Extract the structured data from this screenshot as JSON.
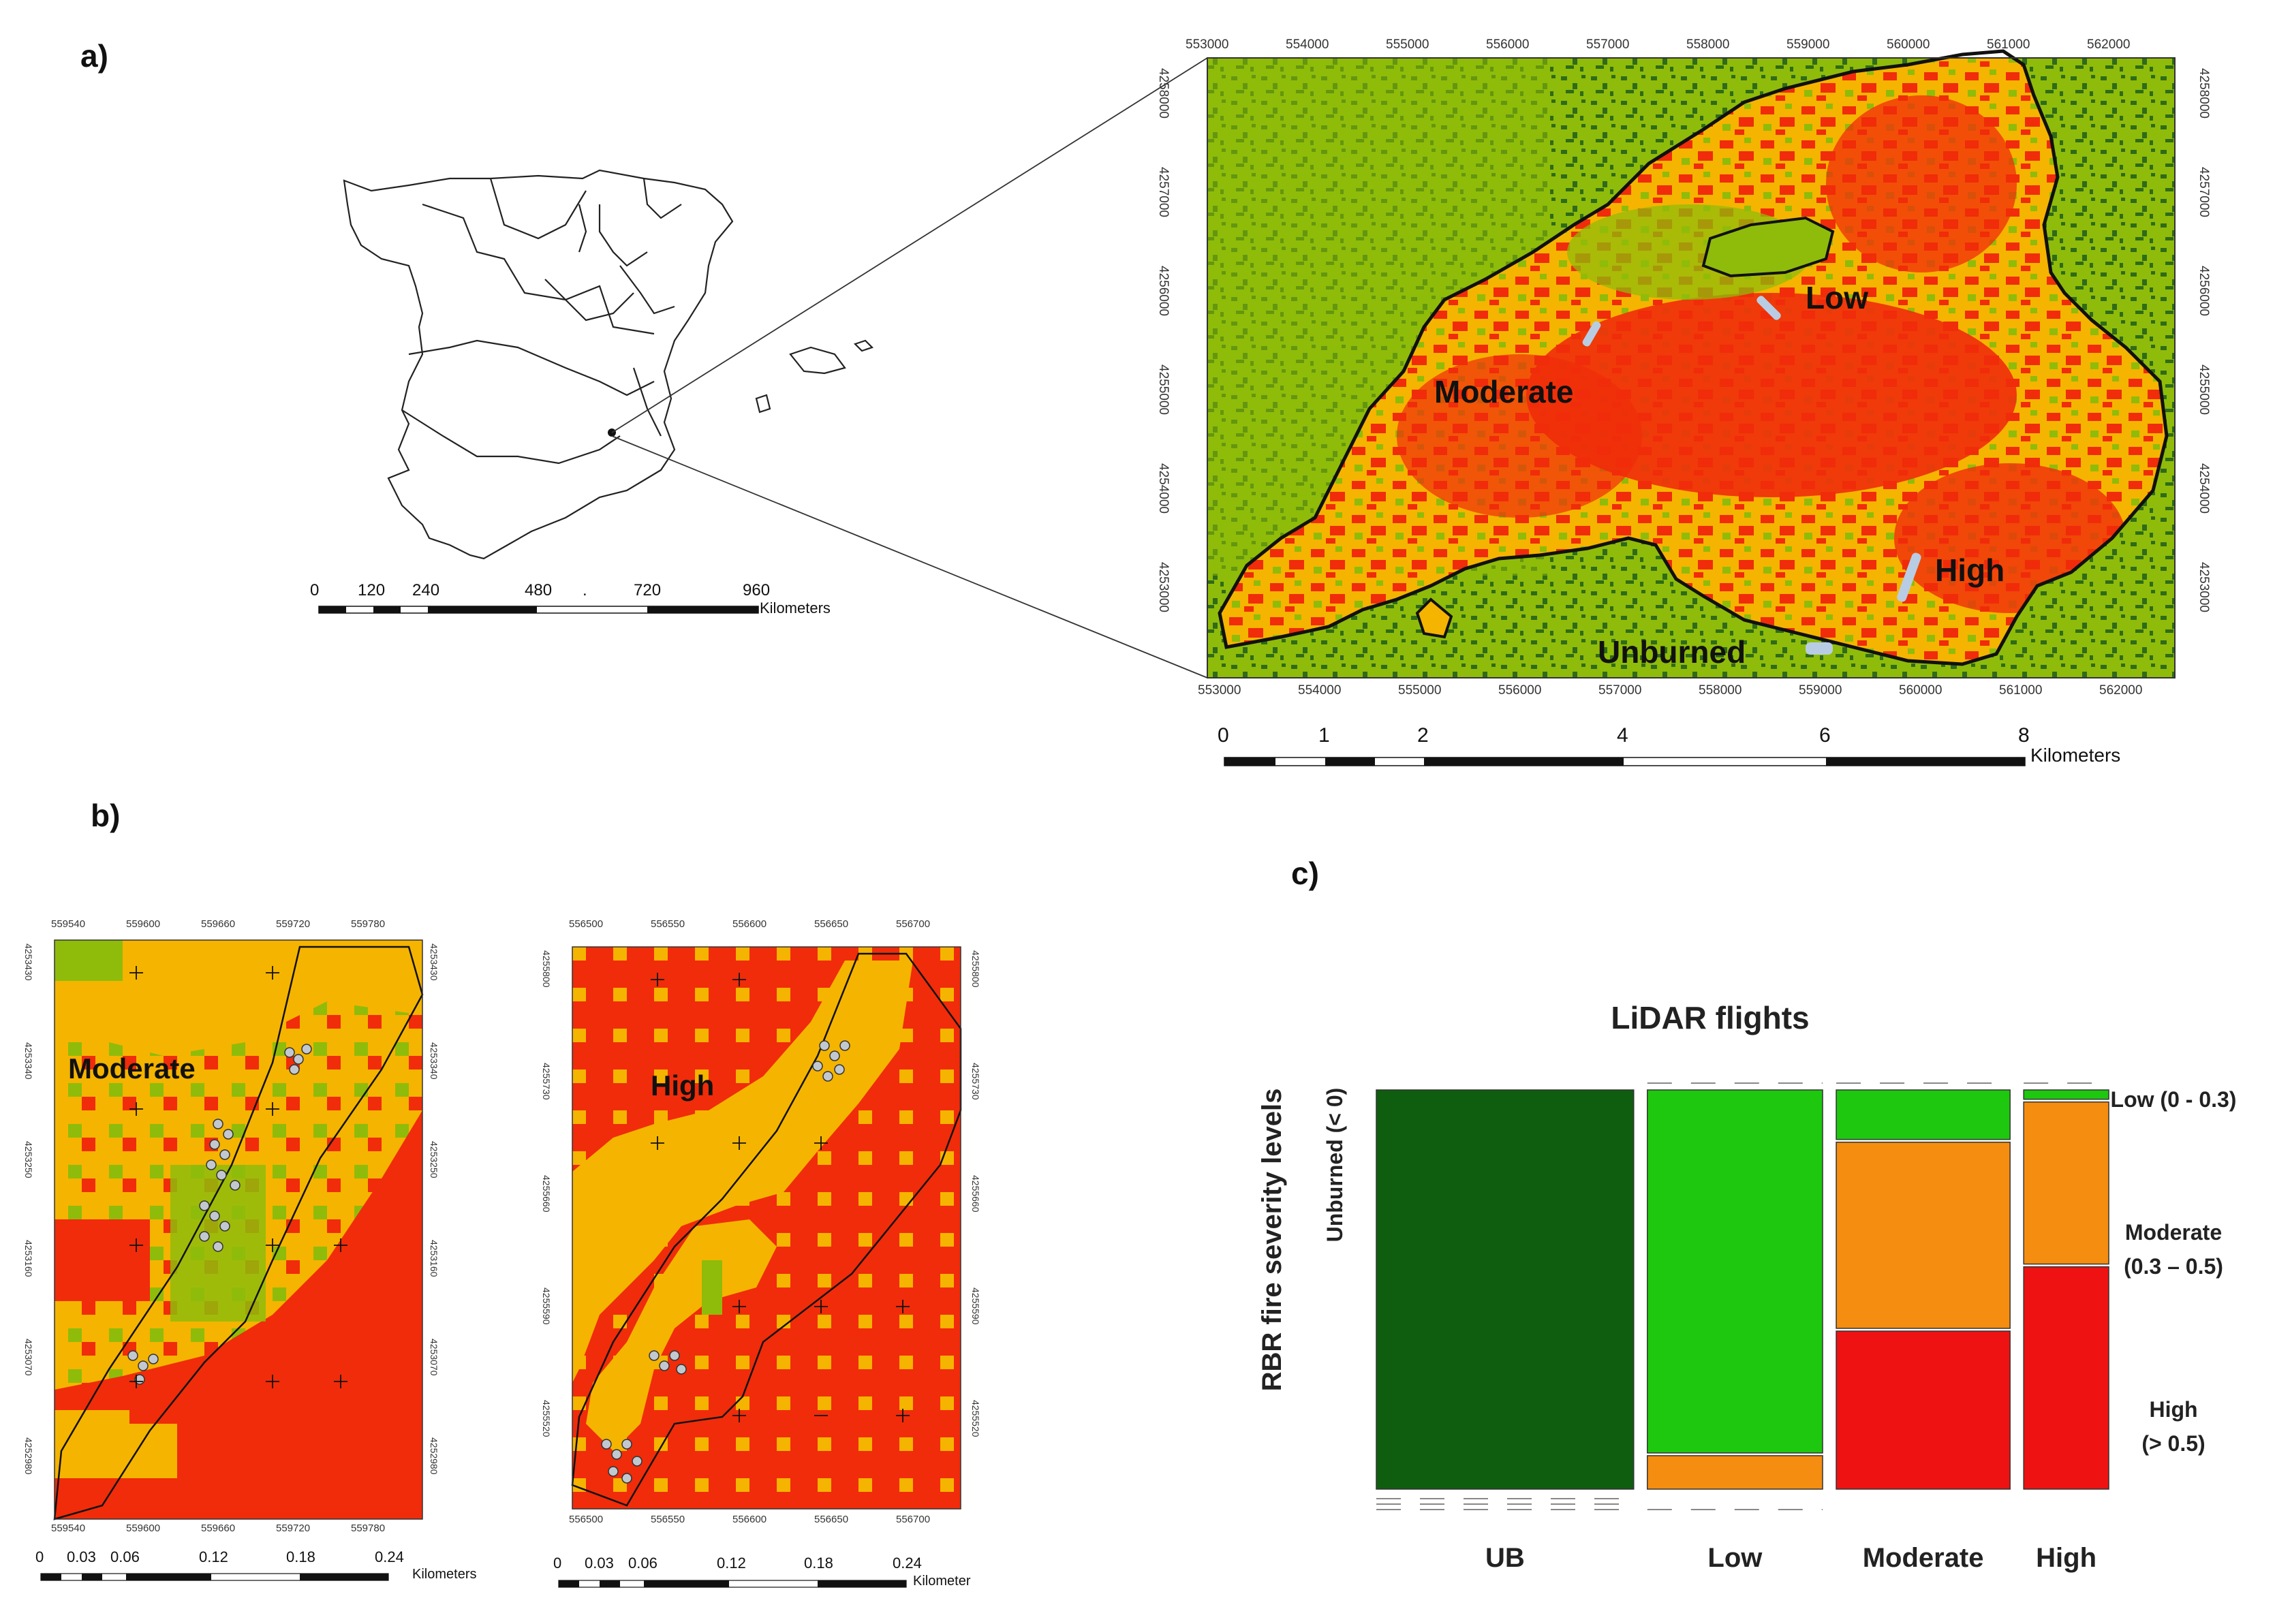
{
  "panels": {
    "a": "a)",
    "b": "b)",
    "c": "c)"
  },
  "colors": {
    "unburned": "#8fbc0a",
    "forest": "#2f6b18",
    "low": "#e5b800",
    "moderate_map": "#f5b400",
    "high_map": "#f02c0a",
    "sample": "#b8cde3",
    "mosaic_ub": "#0f5d0f",
    "mosaic_low": "#1ec80e",
    "mosaic_moderate": "#f58d10",
    "mosaic_high": "#ee1212"
  },
  "spain_map": {
    "scale_ticks": [
      "0",
      "120",
      "240",
      "480",
      ".",
      "720",
      "960"
    ],
    "scale_unit": "Kilometers"
  },
  "fire_map": {
    "x_ticks": [
      "553000",
      "554000",
      "555000",
      "556000",
      "557000",
      "558000",
      "559000",
      "560000",
      "561000",
      "562000"
    ],
    "y_ticks": [
      "4258000",
      "4257000",
      "4256000",
      "4255000",
      "4254000",
      "4253000"
    ],
    "labels": {
      "low": "Low",
      "moderate": "Moderate",
      "high": "High",
      "unburned": "Unburned"
    },
    "scale_ticks": [
      "0",
      "1",
      "2",
      "4",
      "6",
      "8"
    ],
    "scale_unit": "Kilometers"
  },
  "detail_moderate": {
    "x_ticks": [
      "559540",
      "559600",
      "559660",
      "559720",
      "559780"
    ],
    "y_ticks": [
      "4253430",
      "4253340",
      "4253250",
      "4253160",
      "4253070",
      "4252980"
    ],
    "label": "Moderate",
    "scale_ticks": [
      "0",
      "0.03",
      "0.06",
      "0.12",
      "0.18",
      "0.24"
    ],
    "scale_unit": "Kilometers"
  },
  "detail_high": {
    "x_ticks": [
      "556500",
      "556550",
      "556600",
      "556650",
      "556700"
    ],
    "y_ticks": [
      "4255800",
      "4255730",
      "4255660",
      "4255590",
      "4255520"
    ],
    "label": "High",
    "scale_ticks": [
      "0",
      "0.03",
      "0.06",
      "0.12",
      "0.18",
      "0.24"
    ],
    "scale_unit": "Kilometer"
  },
  "chart_data": {
    "type": "mosaic",
    "title": "LiDAR flights",
    "ylabel": "RBR fire severity levels",
    "categories": [
      "UB",
      "Low",
      "Moderate",
      "High"
    ],
    "column_widths": [
      0.348,
      0.237,
      0.235,
      0.115
    ],
    "series": [
      {
        "name": "Unburned (< 0)",
        "color": "#0f5d0f",
        "values": [
          1.0,
          0.0,
          0.0,
          0.0
        ]
      },
      {
        "name": "Low (0 - 0.3)",
        "color": "#1ec80e",
        "values": [
          0.0,
          0.91,
          0.13,
          0.03
        ]
      },
      {
        "name": "Moderate\n(0.3 – 0.5)",
        "color": "#f58d10",
        "values": [
          0.0,
          0.09,
          0.47,
          0.41
        ]
      },
      {
        "name": "High\n(> 0.5)",
        "color": "#ee1212",
        "values": [
          0.0,
          0.0,
          0.4,
          0.56
        ]
      }
    ],
    "row_labels": {
      "unburned": "Unburned (< 0)",
      "low": "Low (0 - 0.3)",
      "moderate_1": "Moderate",
      "moderate_2": "(0.3 – 0.5)",
      "high_1": "High",
      "high_2": "(> 0.5)"
    }
  }
}
